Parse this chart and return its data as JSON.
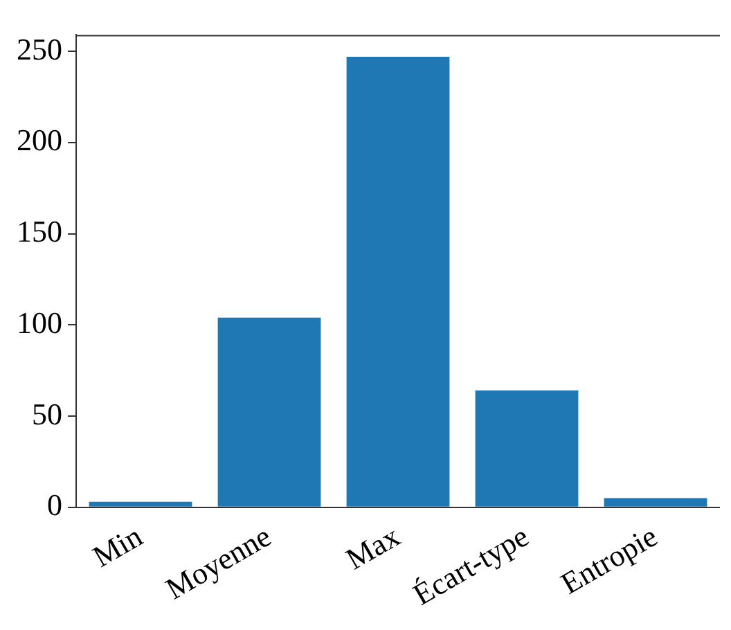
{
  "chart_data": {
    "type": "bar",
    "categories": [
      "Min",
      "Moyenne",
      "Max",
      "Écart-type",
      "Entropie"
    ],
    "values": [
      3,
      104,
      247,
      64,
      5
    ],
    "color": "#1f77b4",
    "ylim": [
      0,
      259
    ],
    "yticks": [
      0,
      50,
      100,
      150,
      200,
      250
    ],
    "grid": false,
    "legend": false
  }
}
